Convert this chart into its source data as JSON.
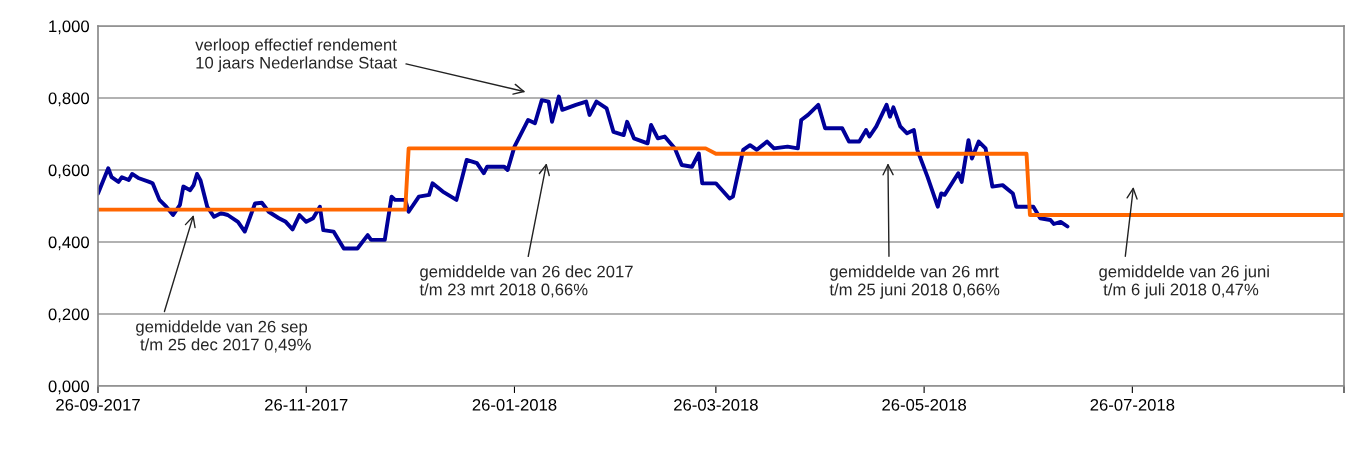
{
  "chart_data": {
    "type": "line",
    "xlim": [
      "2017-09-26",
      "2018-09-26"
    ],
    "xticks": [
      {
        "value": "2017-09-26",
        "label": "26-09-2017"
      },
      {
        "value": "2017-11-26",
        "label": "26-11-2017"
      },
      {
        "value": "2018-01-26",
        "label": "26-01-2018"
      },
      {
        "value": "2018-03-26",
        "label": "26-03-2018"
      },
      {
        "value": "2018-05-26",
        "label": "26-05-2018"
      },
      {
        "value": "2018-07-26",
        "label": "26-07-2018"
      },
      {
        "value": "2018-09-26",
        "label": null
      }
    ],
    "ylim": [
      0,
      1
    ],
    "yticks": [
      {
        "value": 0,
        "label": "0,000"
      },
      {
        "value": 0.2,
        "label": "0,200"
      },
      {
        "value": 0.4,
        "label": "0,400"
      },
      {
        "value": 0.6,
        "label": "0,600"
      },
      {
        "value": 0.8,
        "label": "0,800"
      },
      {
        "value": 1,
        "label": "1,000"
      }
    ],
    "grid": "y",
    "legend": false,
    "series": [
      {
        "color": "#000099",
        "x": [
          "2017-09-26",
          "2017-09-29",
          "2017-09-30",
          "2017-10-02",
          "2017-10-03",
          "2017-10-05",
          "2017-10-06",
          "2017-10-08",
          "2017-10-11",
          "2017-10-12",
          "2017-10-14",
          "2017-10-16",
          "2017-10-18",
          "2017-10-20",
          "2017-10-21",
          "2017-10-23",
          "2017-10-24",
          "2017-10-25",
          "2017-10-26",
          "2017-10-28",
          "2017-10-30",
          "2017-11-01",
          "2017-11-03",
          "2017-11-06",
          "2017-11-08",
          "2017-11-11",
          "2017-11-13",
          "2017-11-15",
          "2017-11-18",
          "2017-11-20",
          "2017-11-22",
          "2017-11-24",
          "2017-11-26",
          "2017-11-28",
          "2017-11-30",
          "2017-12-01",
          "2017-12-04",
          "2017-12-07",
          "2017-12-11",
          "2017-12-14",
          "2017-12-15",
          "2017-12-19",
          "2017-12-21",
          "2017-12-22",
          "2017-12-25",
          "2017-12-26",
          "2017-12-29",
          "2018-01-01",
          "2018-01-02",
          "2018-01-05",
          "2018-01-09",
          "2018-01-12",
          "2018-01-15",
          "2018-01-17",
          "2018-01-18",
          "2018-01-23",
          "2018-01-24",
          "2018-01-26",
          "2018-01-30",
          "2018-02-01",
          "2018-02-03",
          "2018-02-05",
          "2018-02-06",
          "2018-02-08",
          "2018-02-09",
          "2018-02-13",
          "2018-02-16",
          "2018-02-17",
          "2018-02-19",
          "2018-02-22",
          "2018-02-24",
          "2018-02-27",
          "2018-02-28",
          "2018-03-02",
          "2018-03-06",
          "2018-03-07",
          "2018-03-09",
          "2018-03-11",
          "2018-03-14",
          "2018-03-16",
          "2018-03-19",
          "2018-03-21",
          "2018-03-22",
          "2018-03-26",
          "2018-03-30",
          "2018-03-31",
          "2018-04-03",
          "2018-04-05",
          "2018-04-07",
          "2018-04-10",
          "2018-04-12",
          "2018-04-16",
          "2018-04-19",
          "2018-04-20",
          "2018-04-22",
          "2018-04-25",
          "2018-04-27",
          "2018-05-02",
          "2018-05-04",
          "2018-05-07",
          "2018-05-09",
          "2018-05-10",
          "2018-05-12",
          "2018-05-15",
          "2018-05-16",
          "2018-05-17",
          "2018-05-19",
          "2018-05-21",
          "2018-05-23",
          "2018-05-24",
          "2018-05-27",
          "2018-05-30",
          "2018-05-31",
          "2018-06-01",
          "2018-06-05",
          "2018-06-06",
          "2018-06-08",
          "2018-06-09",
          "2018-06-11",
          "2018-06-13",
          "2018-06-15",
          "2018-06-18",
          "2018-06-21",
          "2018-06-22",
          "2018-06-27",
          "2018-06-29",
          "2018-07-02",
          "2018-07-03",
          "2018-07-05",
          "2018-07-07"
        ],
        "values": [
          0.535,
          0.605,
          0.58,
          0.567,
          0.58,
          0.572,
          0.589,
          0.577,
          0.567,
          0.563,
          0.517,
          0.498,
          0.475,
          0.503,
          0.554,
          0.544,
          0.558,
          0.589,
          0.572,
          0.498,
          0.47,
          0.48,
          0.475,
          0.456,
          0.429,
          0.507,
          0.509,
          0.484,
          0.466,
          0.456,
          0.435,
          0.475,
          0.456,
          0.466,
          0.498,
          0.433,
          0.429,
          0.382,
          0.382,
          0.419,
          0.406,
          0.406,
          0.526,
          0.517,
          0.517,
          0.484,
          0.526,
          0.531,
          0.563,
          0.54,
          0.517,
          0.628,
          0.619,
          0.591,
          0.609,
          0.609,
          0.6,
          0.665,
          0.739,
          0.73,
          0.794,
          0.79,
          0.734,
          0.804,
          0.767,
          0.781,
          0.79,
          0.753,
          0.79,
          0.771,
          0.706,
          0.697,
          0.734,
          0.688,
          0.674,
          0.725,
          0.688,
          0.693,
          0.66,
          0.614,
          0.609,
          0.646,
          0.563,
          0.563,
          0.521,
          0.526,
          0.656,
          0.669,
          0.656,
          0.679,
          0.66,
          0.665,
          0.66,
          0.739,
          0.753,
          0.781,
          0.716,
          0.716,
          0.679,
          0.679,
          0.711,
          0.693,
          0.721,
          0.781,
          0.748,
          0.774,
          0.721,
          0.702,
          0.711,
          0.656,
          0.581,
          0.498,
          0.535,
          0.531,
          0.591,
          0.567,
          0.683,
          0.632,
          0.679,
          0.66,
          0.554,
          0.558,
          0.535,
          0.498,
          0.498,
          0.466,
          0.461,
          0.45,
          0.456,
          0.443
        ]
      },
      {
        "color": "#ff6600",
        "x": [
          "2017-09-26",
          "2017-12-25",
          "2017-12-26",
          "2018-03-23",
          "2018-03-26",
          "2018-06-25",
          "2018-06-26",
          "2018-09-26"
        ],
        "values": [
          0.49,
          0.49,
          0.66,
          0.66,
          0.645,
          0.645,
          0.475,
          0.475
        ]
      }
    ],
    "annotations": [
      "verloop effectief rendement\n10 jaars Nederlandse Staat",
      {
        "text": "gemiddelde van 26 sep\n t/m 25 dec 2017 0,49%",
        "x": "2017-10-24",
        "y": 0.475
      },
      "gemiddelde van 26 dec 2017\nt/m 23 mrt 2018 0,66%",
      "gemiddelde van 26 mrt\nt/m 25 juni 2018 0,66%",
      "gemiddelde van 26 juni\n t/m 6 juli 2018 0,47%"
    ]
  }
}
